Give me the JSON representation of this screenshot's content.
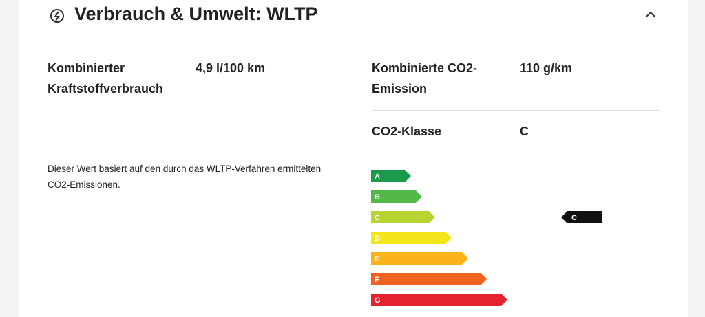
{
  "header": {
    "title": "Verbrauch & Umwelt: WLTP"
  },
  "left": {
    "label": "Kombinierter Kraftstoffverbrauch",
    "value": "4,9 l/100 km",
    "note": "Dieser Wert basiert auf den durch das WLTP-Verfahren ermittelten CO2-Emissionen."
  },
  "right": {
    "rows": [
      {
        "label": "Kombinierte CO2-Emission",
        "value": "110 g/km"
      },
      {
        "label": "CO2-Klasse",
        "value": "C"
      }
    ]
  },
  "energy_label": {
    "classes": [
      "A",
      "B",
      "C",
      "D",
      "E",
      "F",
      "G"
    ],
    "indicator": "C"
  }
}
